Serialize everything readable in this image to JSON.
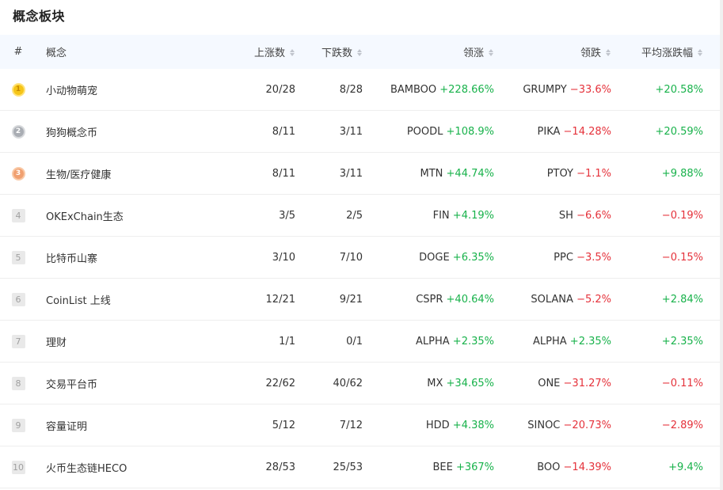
{
  "title": "概念板块",
  "headers": {
    "rank": "#",
    "name": "概念",
    "up": "上涨数",
    "down": "下跌数",
    "lead": "领涨",
    "lag": "领跌",
    "avg": "平均涨跌幅"
  },
  "rows": [
    {
      "rank": "1",
      "name": "小动物萌宠",
      "up": "20/28",
      "down": "8/28",
      "lead_sym": "BAMBOO",
      "lead_pct": "+228.66%",
      "lag_sym": "GRUMPY",
      "lag_pct": "−33.6%",
      "avg": "+20.58%",
      "avg_dir": "up"
    },
    {
      "rank": "2",
      "name": "狗狗概念币",
      "up": "8/11",
      "down": "3/11",
      "lead_sym": "POODL",
      "lead_pct": "+108.9%",
      "lag_sym": "PIKA",
      "lag_pct": "−14.28%",
      "avg": "+20.59%",
      "avg_dir": "up"
    },
    {
      "rank": "3",
      "name": "生物/医疗健康",
      "up": "8/11",
      "down": "3/11",
      "lead_sym": "MTN",
      "lead_pct": "+44.74%",
      "lag_sym": "PTOY",
      "lag_pct": "−1.1%",
      "avg": "+9.88%",
      "avg_dir": "up"
    },
    {
      "rank": "4",
      "name": "OKExChain生态",
      "up": "3/5",
      "down": "2/5",
      "lead_sym": "FIN",
      "lead_pct": "+4.19%",
      "lag_sym": "SH",
      "lag_pct": "−6.6%",
      "avg": "−0.19%",
      "avg_dir": "down"
    },
    {
      "rank": "5",
      "name": "比特币山寨",
      "up": "3/10",
      "down": "7/10",
      "lead_sym": "DOGE",
      "lead_pct": "+6.35%",
      "lag_sym": "PPC",
      "lag_pct": "−3.5%",
      "avg": "−0.15%",
      "avg_dir": "down"
    },
    {
      "rank": "6",
      "name": "CoinList 上线",
      "up": "12/21",
      "down": "9/21",
      "lead_sym": "CSPR",
      "lead_pct": "+40.64%",
      "lag_sym": "SOLANA",
      "lag_pct": "−5.2%",
      "avg": "+2.84%",
      "avg_dir": "up"
    },
    {
      "rank": "7",
      "name": "理财",
      "up": "1/1",
      "down": "0/1",
      "lead_sym": "ALPHA",
      "lead_pct": "+2.35%",
      "lag_sym": "ALPHA",
      "lag_pct": "+2.35%",
      "lag_dir": "up",
      "avg": "+2.35%",
      "avg_dir": "up"
    },
    {
      "rank": "8",
      "name": "交易平台币",
      "up": "22/62",
      "down": "40/62",
      "lead_sym": "MX",
      "lead_pct": "+34.65%",
      "lag_sym": "ONE",
      "lag_pct": "−31.27%",
      "avg": "−0.11%",
      "avg_dir": "down"
    },
    {
      "rank": "9",
      "name": "容量证明",
      "up": "5/12",
      "down": "7/12",
      "lead_sym": "HDD",
      "lead_pct": "+4.38%",
      "lag_sym": "SINOC",
      "lag_pct": "−20.73%",
      "avg": "−2.89%",
      "avg_dir": "down"
    },
    {
      "rank": "10",
      "name": "火币生态链HECO",
      "up": "28/53",
      "down": "25/53",
      "lead_sym": "BEE",
      "lead_pct": "+367%",
      "lag_sym": "BOO",
      "lag_pct": "−14.39%",
      "avg": "+9.4%",
      "avg_dir": "up"
    }
  ],
  "colors": {
    "up": "#18b24b",
    "down": "#e5323b",
    "header_bg": "#f5f9ff"
  }
}
